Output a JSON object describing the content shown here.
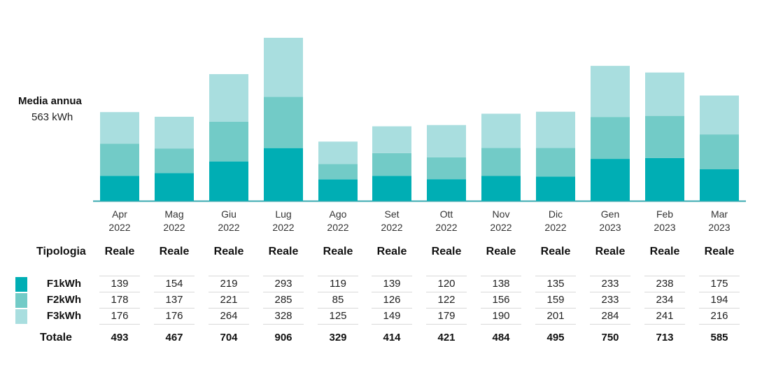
{
  "media": {
    "title": "Media annua",
    "value": "563 kWh"
  },
  "table": {
    "tipologia_label": "Tipologia",
    "tipologia_values": [
      "Reale",
      "Reale",
      "Reale",
      "Reale",
      "Reale",
      "Reale",
      "Reale",
      "Reale",
      "Reale",
      "Reale",
      "Reale",
      "Reale"
    ],
    "totale_label": "Totale"
  },
  "chart_data": {
    "type": "bar",
    "stacked": true,
    "categories": [
      [
        "Apr",
        "2022"
      ],
      [
        "Mag",
        "2022"
      ],
      [
        "Giu",
        "2022"
      ],
      [
        "Lug",
        "2022"
      ],
      [
        "Ago",
        "2022"
      ],
      [
        "Set",
        "2022"
      ],
      [
        "Ott",
        "2022"
      ],
      [
        "Nov",
        "2022"
      ],
      [
        "Dic",
        "2022"
      ],
      [
        "Gen",
        "2023"
      ],
      [
        "Feb",
        "2023"
      ],
      [
        "Mar",
        "2023"
      ]
    ],
    "series": [
      {
        "name": "F1kWh",
        "color": "#00aeb4",
        "values": [
          139,
          154,
          219,
          293,
          119,
          139,
          120,
          138,
          135,
          233,
          238,
          175
        ]
      },
      {
        "name": "F2kWh",
        "color": "#72cbc7",
        "values": [
          178,
          137,
          221,
          285,
          85,
          126,
          122,
          156,
          159,
          233,
          234,
          194
        ]
      },
      {
        "name": "F3kWh",
        "color": "#a9dedf",
        "values": [
          176,
          176,
          264,
          328,
          125,
          149,
          179,
          190,
          201,
          284,
          241,
          216
        ]
      }
    ],
    "totals": [
      493,
      467,
      704,
      906,
      329,
      414,
      421,
      484,
      495,
      750,
      713,
      585
    ],
    "axis_color": "#3aa9b0"
  }
}
